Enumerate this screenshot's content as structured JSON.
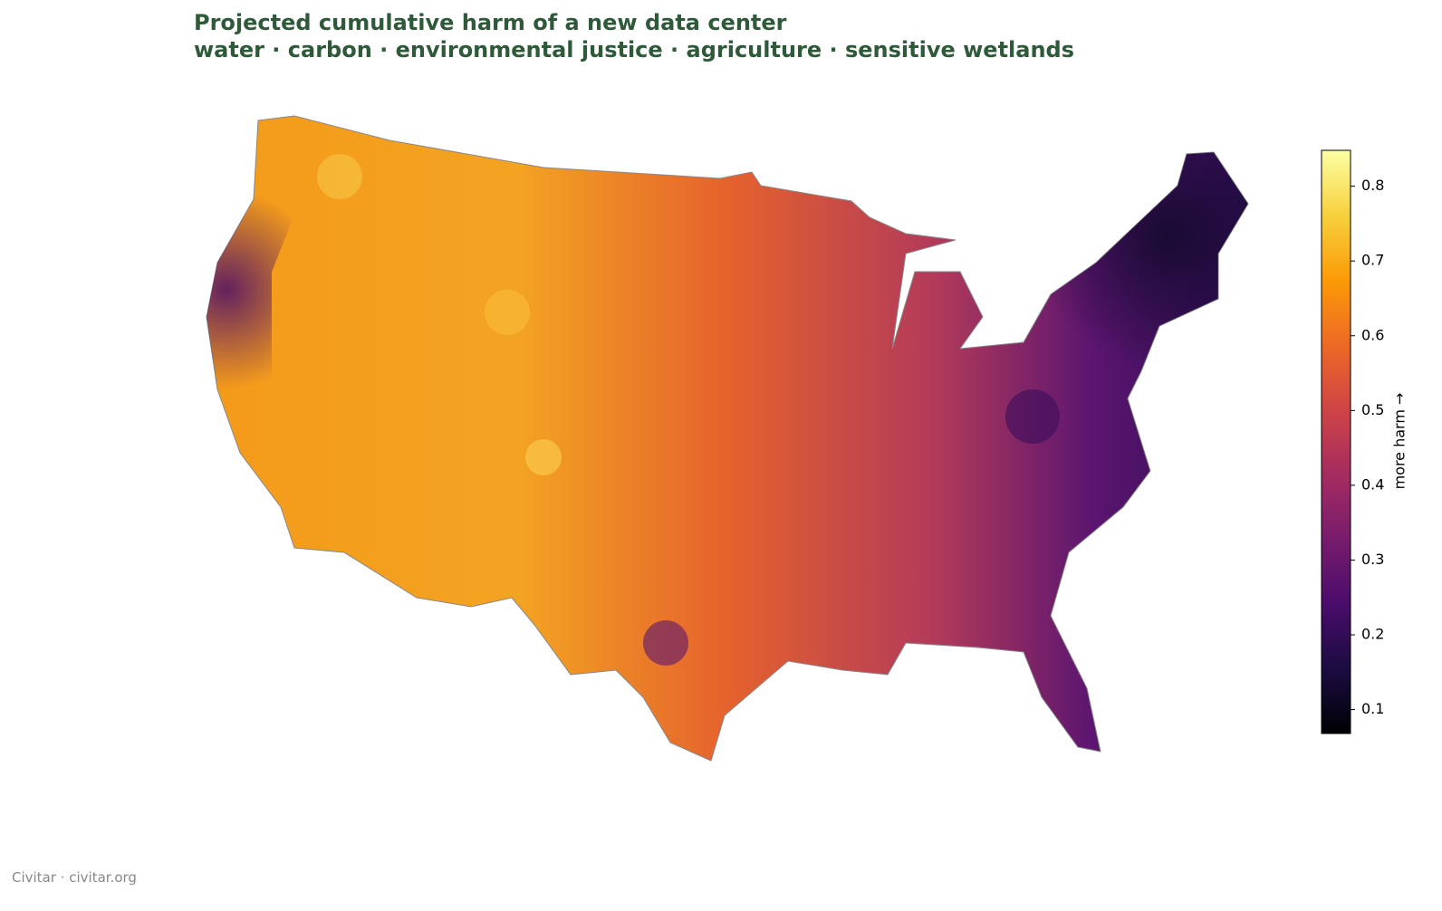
{
  "title": [
    "Projected cumulative harm of a new data center",
    "water · carbon · environmental justice · agriculture · sensitive wetlands"
  ],
  "colorbar": {
    "label": "more harm →",
    "lim": [
      0.068,
      0.848
    ],
    "ticks": [
      0.1,
      0.2,
      0.3,
      0.4,
      0.5,
      0.6,
      0.7,
      0.8
    ],
    "colors": [
      "#000004",
      "#1b0c41",
      "#4a0c6b",
      "#781c6d",
      "#a52c60",
      "#cf4446",
      "#ed6925",
      "#fb9b06",
      "#f7d13d",
      "#fcffa4"
    ]
  },
  "footer": "Civitar · civitar.org"
}
